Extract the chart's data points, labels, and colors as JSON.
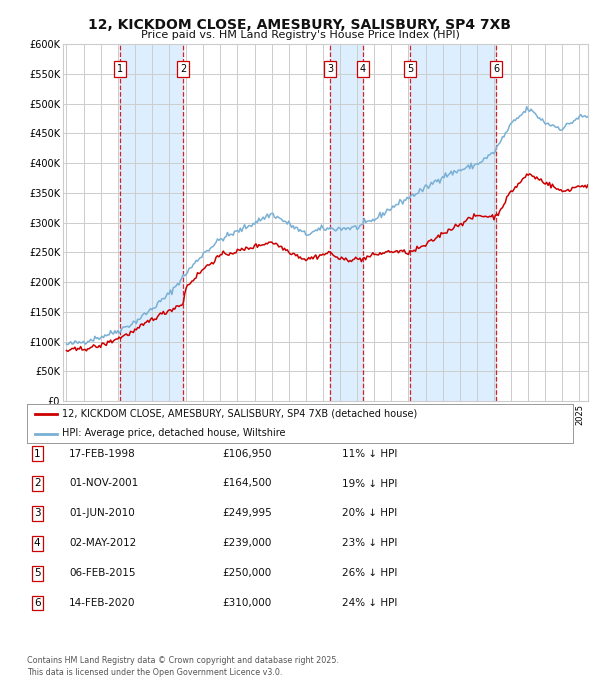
{
  "title": "12, KICKDOM CLOSE, AMESBURY, SALISBURY, SP4 7XB",
  "subtitle": "Price paid vs. HM Land Registry's House Price Index (HPI)",
  "ylim": [
    0,
    600000
  ],
  "yticks": [
    0,
    50000,
    100000,
    150000,
    200000,
    250000,
    300000,
    350000,
    400000,
    450000,
    500000,
    550000,
    600000
  ],
  "ytick_labels": [
    "£0",
    "£50K",
    "£100K",
    "£150K",
    "£200K",
    "£250K",
    "£300K",
    "£350K",
    "£400K",
    "£450K",
    "£500K",
    "£550K",
    "£600K"
  ],
  "xlim_start": 1994.8,
  "xlim_end": 2025.5,
  "sales": [
    {
      "num": 1,
      "year": 1998.12,
      "price": 106950
    },
    {
      "num": 2,
      "year": 2001.83,
      "price": 164500
    },
    {
      "num": 3,
      "year": 2010.42,
      "price": 249995
    },
    {
      "num": 4,
      "year": 2012.33,
      "price": 239000
    },
    {
      "num": 5,
      "year": 2015.09,
      "price": 250000
    },
    {
      "num": 6,
      "year": 2020.12,
      "price": 310000
    }
  ],
  "legend_label_red": "12, KICKDOM CLOSE, AMESBURY, SALISBURY, SP4 7XB (detached house)",
  "legend_label_blue": "HPI: Average price, detached house, Wiltshire",
  "table_rows": [
    {
      "num": 1,
      "date": "17-FEB-1998",
      "price": "£106,950",
      "hpi": "11% ↓ HPI"
    },
    {
      "num": 2,
      "date": "01-NOV-2001",
      "price": "£164,500",
      "hpi": "19% ↓ HPI"
    },
    {
      "num": 3,
      "date": "01-JUN-2010",
      "price": "£249,995",
      "hpi": "20% ↓ HPI"
    },
    {
      "num": 4,
      "date": "02-MAY-2012",
      "price": "£239,000",
      "hpi": "23% ↓ HPI"
    },
    {
      "num": 5,
      "date": "06-FEB-2015",
      "price": "£250,000",
      "hpi": "26% ↓ HPI"
    },
    {
      "num": 6,
      "date": "14-FEB-2020",
      "price": "£310,000",
      "hpi": "24% ↓ HPI"
    }
  ],
  "footer": "Contains HM Land Registry data © Crown copyright and database right 2025.\nThis data is licensed under the Open Government Licence v3.0.",
  "red_color": "#cc0000",
  "blue_color": "#7ab0d4",
  "shade_color": "#ddeeff",
  "grid_color": "#cccccc",
  "background_color": "#ffffff"
}
